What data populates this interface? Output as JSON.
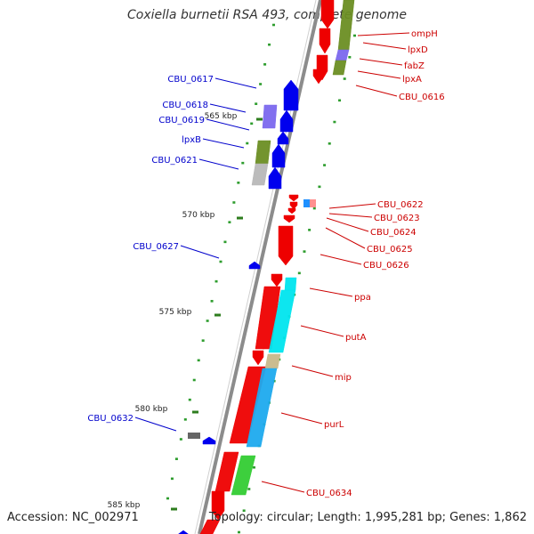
{
  "title": "Coxiella burnetii RSA 493, complete genome",
  "footer": {
    "accession": "Accession: NC_002971",
    "summary": "Topology: circular; Length: 1,995,281 bp; Genes: 1,862"
  },
  "colors": {
    "backbone": "#8c8c8c",
    "forward_label": "#0000cc",
    "reverse_label": "#cc0000",
    "tick": "#2e7d1e",
    "dot": "#2e9d2e"
  },
  "kbp_ticks": [
    "565 kbp",
    "570 kbp",
    "575 kbp",
    "580 kbp",
    "585 kbp"
  ],
  "genes_forward": [
    "CBU_0617",
    "CBU_0618",
    "CBU_0619",
    "lpxB",
    "CBU_0621",
    "CBU_0627",
    "CBU_0632"
  ],
  "genes_reverse": [
    "ompH",
    "lpxD",
    "fabZ",
    "lpxA",
    "CBU_0616",
    "CBU_0622",
    "CBU_0623",
    "CBU_0624",
    "CBU_0625",
    "CBU_0626",
    "ppa",
    "putA",
    "mip",
    "purL",
    "CBU_0634"
  ]
}
